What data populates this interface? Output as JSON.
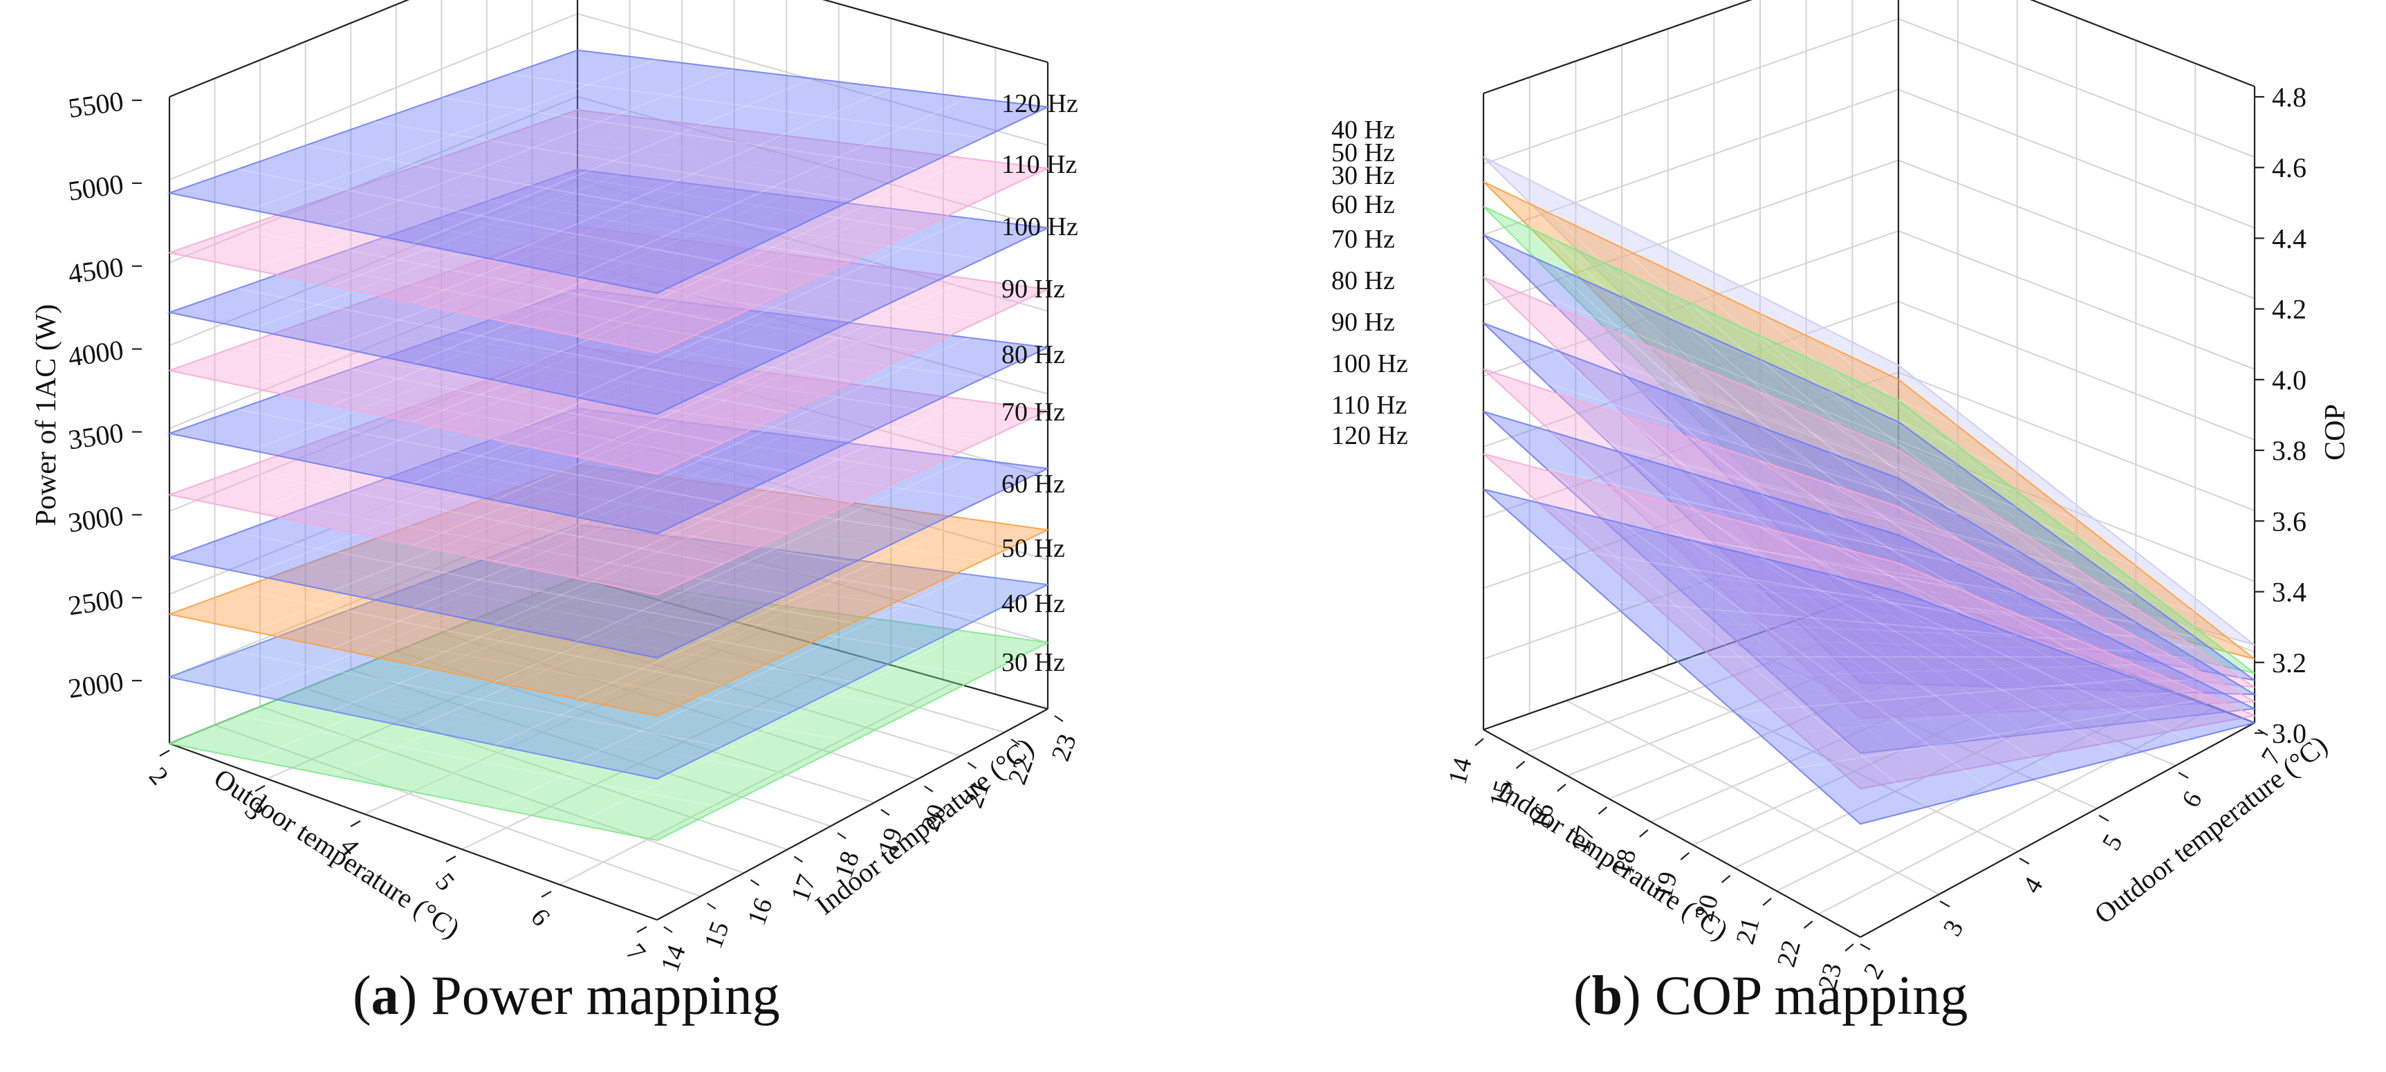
{
  "chart_data": [
    {
      "type": "surface3d",
      "panel_label": "a",
      "caption": "Power mapping",
      "zlabel": "Power of 1AC (W)",
      "xlabel": "Outdoor temperature (°C)",
      "ylabel": "Indoor temperature (°C)",
      "x_ticks": [
        "2",
        "3",
        "4",
        "5",
        "6",
        "7"
      ],
      "y_ticks": [
        "14",
        "15",
        "16",
        "17",
        "18",
        "19",
        "20",
        "21",
        "22",
        "23"
      ],
      "z_ticks": [
        "2000",
        "2500",
        "3000",
        "3500",
        "4000",
        "4500",
        "5000",
        "5500"
      ],
      "xlim": [
        2,
        7
      ],
      "ylim": [
        14,
        23
      ],
      "zlim": [
        1600,
        5500
      ],
      "series": [
        {
          "name": "30 Hz",
          "color": "#7ee88a",
          "corners": [
            1600,
            2080,
            2000,
            1600
          ]
        },
        {
          "name": "40 Hz",
          "color": "#6e8cf5",
          "corners": [
            2000,
            2450,
            2350,
            1920
          ]
        },
        {
          "name": "50 Hz",
          "color": "#ff9d40",
          "corners": [
            2380,
            2830,
            2680,
            2280
          ]
        },
        {
          "name": "60 Hz",
          "color": "#6e7df5",
          "corners": [
            2720,
            3180,
            3050,
            2620
          ]
        },
        {
          "name": "70 Hz",
          "color": "#f7a9d6",
          "corners": [
            3100,
            3560,
            3400,
            2990
          ]
        },
        {
          "name": "80 Hz",
          "color": "#6e7df5",
          "corners": [
            3470,
            3930,
            3780,
            3340
          ]
        },
        {
          "name": "90 Hz",
          "color": "#f7a9d6",
          "corners": [
            3850,
            4290,
            4130,
            3720
          ]
        },
        {
          "name": "100 Hz",
          "color": "#6e7df5",
          "corners": [
            4200,
            4650,
            4500,
            4060
          ]
        },
        {
          "name": "110 Hz",
          "color": "#f7a9d6",
          "corners": [
            4560,
            5020,
            4860,
            4420
          ]
        },
        {
          "name": "120 Hz",
          "color": "#6e7df5",
          "corners": [
            4920,
            5380,
            5230,
            4780
          ]
        }
      ]
    },
    {
      "type": "surface3d",
      "panel_label": "b",
      "caption": "COP mapping",
      "zlabel": "COP",
      "xlabel": "Indoor temperature (°C)",
      "ylabel": "Outdoor temperature (°C)",
      "x_ticks": [
        "14",
        "15",
        "16",
        "17",
        "18",
        "19",
        "20",
        "21",
        "22",
        "23"
      ],
      "y_ticks": [
        "2",
        "3",
        "4",
        "5",
        "6",
        "7"
      ],
      "z_ticks": [
        "3.0",
        "3.2",
        "3.4",
        "3.6",
        "3.8",
        "4.0",
        "4.2",
        "4.4",
        "4.6",
        "4.8"
      ],
      "xlim": [
        14,
        23
      ],
      "ylim": [
        2,
        7
      ],
      "zlim": [
        3.0,
        4.8
      ],
      "series": [
        {
          "name": "40 Hz",
          "color": "#c5cbf5",
          "corners": [
            4.62,
            4.15,
            3.22,
            3.62
          ]
        },
        {
          "name": "50 Hz",
          "color": "#ff9d40",
          "corners": [
            4.55,
            4.08,
            3.18,
            3.58
          ]
        },
        {
          "name": "30 Hz",
          "color": "#7ee88a",
          "corners": [
            4.48,
            4.0,
            3.14,
            3.52
          ]
        },
        {
          "name": "60 Hz",
          "color": "#6e7df5",
          "corners": [
            4.4,
            3.93,
            3.12,
            3.46
          ]
        },
        {
          "name": "70 Hz",
          "color": "#f7a9d6",
          "corners": [
            4.28,
            3.83,
            3.1,
            3.38
          ]
        },
        {
          "name": "80 Hz",
          "color": "#6e7df5",
          "corners": [
            4.15,
            3.72,
            3.08,
            3.3
          ]
        },
        {
          "name": "90 Hz",
          "color": "#f7a9d6",
          "corners": [
            4.02,
            3.62,
            3.06,
            3.22
          ]
        },
        {
          "name": "100 Hz",
          "color": "#6e7df5",
          "corners": [
            3.9,
            3.52,
            3.04,
            3.14
          ]
        },
        {
          "name": "110 Hz",
          "color": "#f7a9d6",
          "corners": [
            3.78,
            3.42,
            3.02,
            3.06
          ]
        },
        {
          "name": "120 Hz",
          "color": "#6e7df5",
          "corners": [
            3.68,
            3.32,
            3.0,
            2.98
          ]
        }
      ]
    }
  ]
}
